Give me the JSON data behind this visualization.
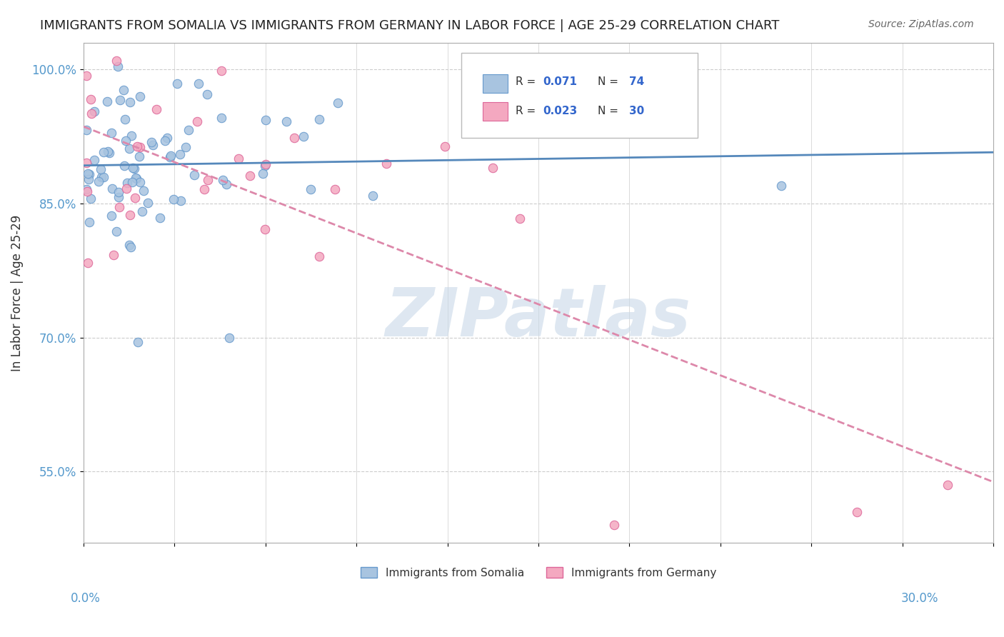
{
  "title": "IMMIGRANTS FROM SOMALIA VS IMMIGRANTS FROM GERMANY IN LABOR FORCE | AGE 25-29 CORRELATION CHART",
  "source": "Source: ZipAtlas.com",
  "ylabel": "In Labor Force | Age 25-29",
  "ytick_vals": [
    0.55,
    0.7,
    0.85,
    1.0
  ],
  "xlim": [
    0.0,
    0.3
  ],
  "ylim": [
    0.47,
    1.03
  ],
  "somalia_R": 0.071,
  "somalia_N": 74,
  "germany_R": 0.023,
  "germany_N": 30,
  "somalia_color": "#a8c4e0",
  "germany_color": "#f4a8c0",
  "somalia_edge": "#6699cc",
  "germany_edge": "#dd6699",
  "trend_somalia_color": "#5588bb",
  "trend_germany_color": "#dd88aa",
  "watermark_text": "ZIPatlas",
  "watermark_color": "#c8d8e8",
  "background_color": "#ffffff",
  "legend_somalia": "Immigrants from Somalia",
  "legend_germany": "Immigrants from Germany"
}
